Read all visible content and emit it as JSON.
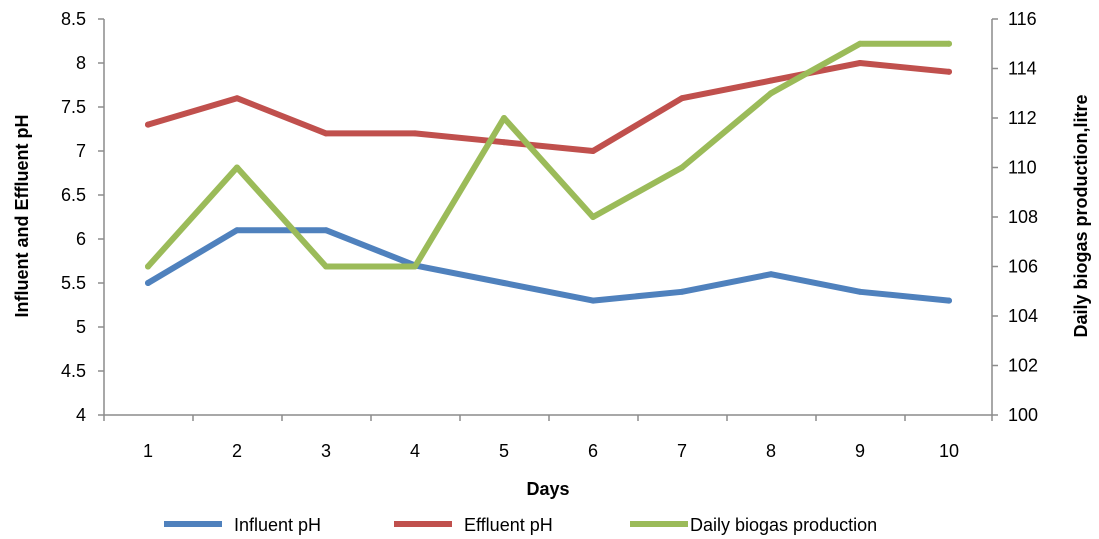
{
  "chart_data": {
    "type": "line",
    "title": "",
    "xlabel": "Days",
    "ylabel": "Influent and Effluent pH",
    "y2label": "Daily biogas production,litre",
    "x": [
      1,
      2,
      3,
      4,
      5,
      6,
      7,
      8,
      9,
      10
    ],
    "x_tick_labels": [
      "1",
      "2",
      "3",
      "4",
      "5",
      "6",
      "7",
      "8",
      "9",
      "10"
    ],
    "ylim": [
      4,
      8.5
    ],
    "y_ticks": [
      "4",
      "4.5",
      "5",
      "5.5",
      "6",
      "6.5",
      "7",
      "7.5",
      "8",
      "8.5"
    ],
    "y2lim": [
      100,
      116
    ],
    "y2_ticks": [
      "100",
      "102",
      "104",
      "106",
      "108",
      "110",
      "112",
      "114",
      "116"
    ],
    "grid": false,
    "legend_position": "bottom",
    "series": [
      {
        "name": "Influent pH",
        "axis": "left",
        "color": "#4f81bd",
        "values": [
          5.5,
          6.1,
          6.1,
          5.7,
          5.5,
          5.3,
          5.4,
          5.6,
          5.4,
          5.3
        ]
      },
      {
        "name": "Effluent pH",
        "axis": "left",
        "color": "#c0504d",
        "values": [
          7.3,
          7.6,
          7.2,
          7.2,
          7.1,
          7.0,
          7.6,
          7.8,
          8.0,
          7.9
        ]
      },
      {
        "name": "Daily biogas production",
        "axis": "right",
        "color": "#9bbb59",
        "values": [
          106,
          110,
          106,
          106,
          112,
          108,
          110,
          113,
          115,
          115
        ]
      }
    ]
  }
}
